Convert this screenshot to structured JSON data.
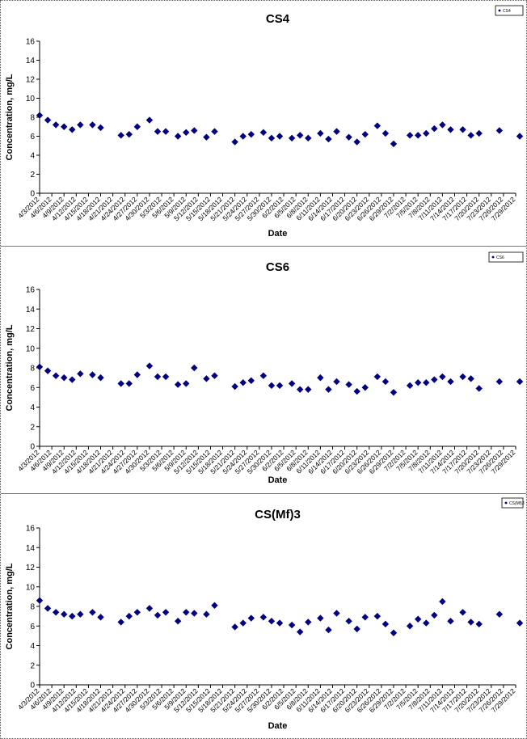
{
  "chart_data": [
    {
      "type": "scatter",
      "title": "CS4",
      "legend": "CS4",
      "legend_position": "top-right",
      "xlabel": "Date",
      "ylabel": "Concentration, mg/L",
      "ylim": [
        0,
        16
      ],
      "yticks": [
        0,
        2,
        4,
        6,
        8,
        10,
        12,
        14,
        16
      ],
      "xlim": [
        "4/3/2012",
        "7/29/2012"
      ],
      "xtick_labels": [
        "4/3/2012",
        "4/6/2012",
        "4/9/2012",
        "4/12/2012",
        "4/15/2012",
        "4/18/2012",
        "4/21/2012",
        "4/24/2012",
        "4/27/2012",
        "4/30/2012",
        "5/3/2012",
        "5/6/2012",
        "5/9/2012",
        "5/12/2012",
        "5/15/2012",
        "5/18/2012",
        "5/21/2012",
        "5/24/2012",
        "5/27/2012",
        "5/30/2012",
        "6/2/2012",
        "6/5/2012",
        "6/8/2012",
        "6/11/2012",
        "6/14/2012",
        "6/17/2012",
        "6/20/2012",
        "6/23/2012",
        "6/26/2012",
        "6/29/2012",
        "7/2/2012",
        "7/5/2012",
        "7/8/2012",
        "7/11/2012",
        "7/14/2012",
        "7/17/2012",
        "7/20/2012",
        "7/23/2012",
        "7/26/2012",
        "7/29/2012"
      ],
      "marker_color": "#000080",
      "grid": false,
      "x": [
        "4/3/2012",
        "4/5/2012",
        "4/7/2012",
        "4/9/2012",
        "4/11/2012",
        "4/13/2012",
        "4/16/2012",
        "4/18/2012",
        "4/23/2012",
        "4/25/2012",
        "4/27/2012",
        "4/30/2012",
        "5/2/2012",
        "5/4/2012",
        "5/7/2012",
        "5/9/2012",
        "5/11/2012",
        "5/14/2012",
        "5/16/2012",
        "5/21/2012",
        "5/23/2012",
        "5/25/2012",
        "5/28/2012",
        "5/30/2012",
        "6/1/2012",
        "6/4/2012",
        "6/6/2012",
        "6/8/2012",
        "6/11/2012",
        "6/13/2012",
        "6/15/2012",
        "6/18/2012",
        "6/20/2012",
        "6/22/2012",
        "6/25/2012",
        "6/27/2012",
        "6/29/2012",
        "7/3/2012",
        "7/5/2012",
        "7/7/2012",
        "7/9/2012",
        "7/11/2012",
        "7/13/2012",
        "7/16/2012",
        "7/18/2012",
        "7/20/2012",
        "7/25/2012",
        "7/30/2012"
      ],
      "y": [
        8.2,
        7.7,
        7.2,
        7.0,
        6.7,
        7.2,
        7.2,
        6.9,
        6.1,
        6.2,
        7.0,
        7.7,
        6.5,
        6.5,
        6.0,
        6.4,
        6.6,
        5.9,
        6.5,
        5.4,
        6.0,
        6.2,
        6.4,
        5.8,
        6.0,
        5.8,
        6.1,
        5.8,
        6.3,
        5.7,
        6.5,
        5.9,
        5.4,
        6.2,
        7.1,
        6.3,
        5.2,
        6.1,
        6.1,
        6.3,
        6.8,
        7.2,
        6.7,
        6.7,
        6.1,
        6.3,
        6.6,
        6.0
      ]
    },
    {
      "type": "scatter",
      "title": "CS6",
      "legend": "CS6",
      "legend_position": "top-right",
      "xlabel": "Date",
      "ylabel": "Concentration, mg/L",
      "ylim": [
        0,
        16
      ],
      "yticks": [
        0,
        2,
        4,
        6,
        8,
        10,
        12,
        14,
        16
      ],
      "xlim": [
        "4/3/2012",
        "7/29/2012"
      ],
      "xtick_labels": [
        "4/3/2012",
        "4/6/2012",
        "4/9/2012",
        "4/12/2012",
        "4/15/2012",
        "4/18/2012",
        "4/21/2012",
        "4/24/2012",
        "4/27/2012",
        "4/30/2012",
        "5/3/2012",
        "5/6/2012",
        "5/9/2012",
        "5/12/2012",
        "5/15/2012",
        "5/18/2012",
        "5/21/2012",
        "5/24/2012",
        "5/27/2012",
        "5/30/2012",
        "6/2/2012",
        "6/5/2012",
        "6/8/2012",
        "6/11/2012",
        "6/14/2012",
        "6/17/2012",
        "6/20/2012",
        "6/23/2012",
        "6/26/2012",
        "6/29/2012",
        "7/2/2012",
        "7/5/2012",
        "7/8/2012",
        "7/11/2012",
        "7/14/2012",
        "7/17/2012",
        "7/20/2012",
        "7/23/2012",
        "7/26/2012",
        "7/29/2012"
      ],
      "marker_color": "#000080",
      "grid": false,
      "x": [
        "4/3/2012",
        "4/5/2012",
        "4/7/2012",
        "4/9/2012",
        "4/11/2012",
        "4/13/2012",
        "4/16/2012",
        "4/18/2012",
        "4/23/2012",
        "4/25/2012",
        "4/27/2012",
        "4/30/2012",
        "5/2/2012",
        "5/4/2012",
        "5/7/2012",
        "5/9/2012",
        "5/11/2012",
        "5/14/2012",
        "5/16/2012",
        "5/21/2012",
        "5/23/2012",
        "5/25/2012",
        "5/28/2012",
        "5/30/2012",
        "6/1/2012",
        "6/4/2012",
        "6/6/2012",
        "6/8/2012",
        "6/11/2012",
        "6/13/2012",
        "6/15/2012",
        "6/18/2012",
        "6/20/2012",
        "6/22/2012",
        "6/25/2012",
        "6/27/2012",
        "6/29/2012",
        "7/3/2012",
        "7/5/2012",
        "7/7/2012",
        "7/9/2012",
        "7/11/2012",
        "7/13/2012",
        "7/16/2012",
        "7/18/2012",
        "7/20/2012",
        "7/25/2012",
        "7/30/2012"
      ],
      "y": [
        8.1,
        7.7,
        7.2,
        7.0,
        6.8,
        7.4,
        7.3,
        7.0,
        6.4,
        6.4,
        7.3,
        8.2,
        7.1,
        7.1,
        6.3,
        6.4,
        8.0,
        6.9,
        7.2,
        6.1,
        6.5,
        6.7,
        7.2,
        6.2,
        6.2,
        6.4,
        5.8,
        5.8,
        7.0,
        5.8,
        6.6,
        6.3,
        5.6,
        6.0,
        7.1,
        6.6,
        5.5,
        6.2,
        6.5,
        6.5,
        6.8,
        7.1,
        6.6,
        7.1,
        6.9,
        5.9,
        6.6,
        6.6
      ]
    },
    {
      "type": "scatter",
      "title": "CS(Mf)3",
      "legend": "CS(Mf)3",
      "legend_position": "top-right",
      "xlabel": "Date",
      "ylabel": "Concentration, mg/L",
      "ylim": [
        0,
        16
      ],
      "yticks": [
        0,
        2,
        4,
        6,
        8,
        10,
        12,
        14,
        16
      ],
      "xlim": [
        "4/3/2012",
        "7/29/2012"
      ],
      "xtick_labels": [
        "4/3/2012",
        "4/6/2012",
        "4/9/2012",
        "4/12/2012",
        "4/15/2012",
        "4/18/2012",
        "4/21/2012",
        "4/24/2012",
        "4/27/2012",
        "4/30/2012",
        "5/3/2012",
        "5/6/2012",
        "5/9/2012",
        "5/12/2012",
        "5/15/2012",
        "5/18/2012",
        "5/21/2012",
        "5/24/2012",
        "5/27/2012",
        "5/30/2012",
        "6/2/2012",
        "6/5/2012",
        "6/8/2012",
        "6/11/2012",
        "6/14/2012",
        "6/17/2012",
        "6/20/2012",
        "6/23/2012",
        "6/26/2012",
        "6/29/2012",
        "7/2/2012",
        "7/5/2012",
        "7/8/2012",
        "7/11/2012",
        "7/14/2012",
        "7/17/2012",
        "7/20/2012",
        "7/23/2012",
        "7/26/2012",
        "7/29/2012"
      ],
      "marker_color": "#000080",
      "grid": false,
      "x": [
        "4/3/2012",
        "4/5/2012",
        "4/7/2012",
        "4/9/2012",
        "4/11/2012",
        "4/13/2012",
        "4/16/2012",
        "4/18/2012",
        "4/23/2012",
        "4/25/2012",
        "4/27/2012",
        "4/30/2012",
        "5/2/2012",
        "5/4/2012",
        "5/7/2012",
        "5/9/2012",
        "5/11/2012",
        "5/14/2012",
        "5/16/2012",
        "5/21/2012",
        "5/23/2012",
        "5/25/2012",
        "5/28/2012",
        "5/30/2012",
        "6/1/2012",
        "6/4/2012",
        "6/6/2012",
        "6/8/2012",
        "6/11/2012",
        "6/13/2012",
        "6/15/2012",
        "6/18/2012",
        "6/20/2012",
        "6/22/2012",
        "6/25/2012",
        "6/27/2012",
        "6/29/2012",
        "7/3/2012",
        "7/5/2012",
        "7/7/2012",
        "7/9/2012",
        "7/11/2012",
        "7/13/2012",
        "7/16/2012",
        "7/18/2012",
        "7/20/2012",
        "7/25/2012",
        "7/30/2012"
      ],
      "y": [
        8.6,
        7.8,
        7.4,
        7.2,
        7.0,
        7.2,
        7.4,
        6.9,
        6.4,
        7.0,
        7.4,
        7.8,
        7.1,
        7.4,
        6.5,
        7.4,
        7.3,
        7.2,
        8.1,
        5.9,
        6.3,
        6.8,
        6.9,
        6.5,
        6.3,
        6.1,
        5.4,
        6.4,
        6.8,
        5.6,
        7.3,
        6.5,
        5.7,
        6.9,
        7.0,
        6.2,
        5.3,
        6.0,
        6.7,
        6.3,
        7.1,
        8.5,
        6.5,
        7.4,
        6.4,
        6.2,
        7.2,
        6.3
      ]
    }
  ]
}
